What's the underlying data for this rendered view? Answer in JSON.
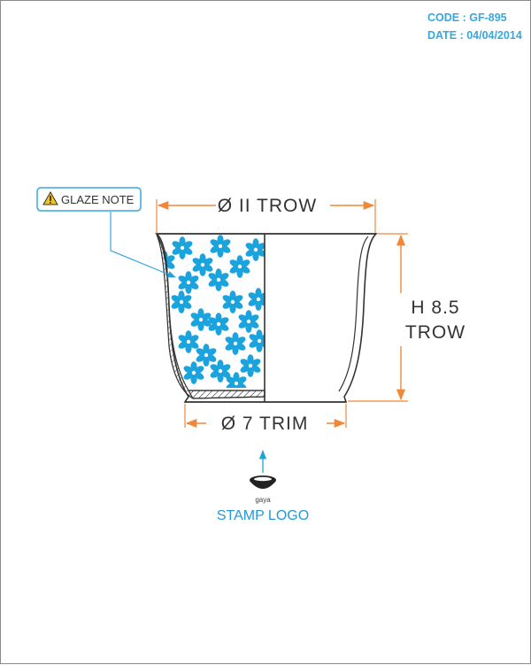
{
  "meta": {
    "code_line": "CODE : GF-895",
    "date_line": "DATE : 04/04/2014"
  },
  "dimensions": {
    "top_diameter": "Ø II TROW",
    "height_line1": "H 8.5",
    "height_line2": "TROW",
    "base_diameter": "Ø 7 TRIM"
  },
  "glaze_note": {
    "icon": "warning-icon",
    "label": "GLAZE NOTE"
  },
  "stamp": {
    "brand": "gaya",
    "label": "STAMP LOGO"
  },
  "colors": {
    "dimension_orange": "#f0883a",
    "accent_blue": "#36a8df",
    "flower_blue": "#1aa3dc",
    "outline": "#333333"
  }
}
